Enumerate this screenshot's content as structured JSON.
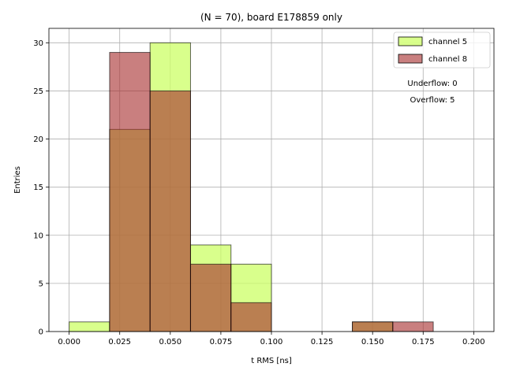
{
  "chart_data": {
    "type": "bar",
    "title": "(N = 70), board E178859 only",
    "xlabel": "t RMS [ns]",
    "ylabel": "Entries",
    "xlim": [
      -0.01,
      0.21
    ],
    "ylim": [
      0,
      31.5
    ],
    "bin_edges": [
      0.0,
      0.02,
      0.04,
      0.06,
      0.08,
      0.1,
      0.12,
      0.14,
      0.16,
      0.18,
      0.2
    ],
    "x_ticks": [
      0.0,
      0.025,
      0.05,
      0.075,
      0.1,
      0.125,
      0.15,
      0.175,
      0.2
    ],
    "x_tick_labels": [
      "0.000",
      "0.025",
      "0.050",
      "0.075",
      "0.100",
      "0.125",
      "0.150",
      "0.175",
      "0.200"
    ],
    "y_ticks": [
      0,
      5,
      10,
      15,
      20,
      25,
      30
    ],
    "y_tick_labels": [
      "0",
      "5",
      "10",
      "15",
      "20",
      "25",
      "30"
    ],
    "grid": true,
    "legend_position": "top-right",
    "series": [
      {
        "name": "channel 5",
        "color": "#ccff66",
        "values": [
          1,
          21,
          30,
          9,
          7,
          0,
          0,
          1,
          0,
          0
        ]
      },
      {
        "name": "channel 8",
        "color": "#a52a2a",
        "values": [
          0,
          29,
          25,
          7,
          3,
          0,
          0,
          1,
          1,
          0
        ]
      }
    ],
    "annotations": [
      "Underflow: 0",
      "Overflow: 5"
    ]
  }
}
